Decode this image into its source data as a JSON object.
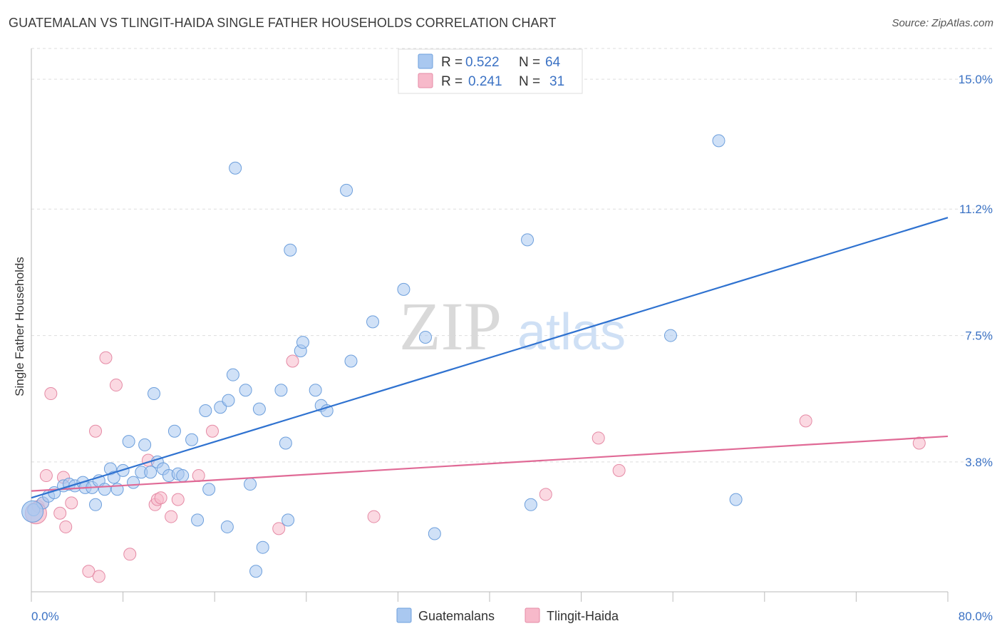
{
  "title": "GUATEMALAN VS TLINGIT-HAIDA SINGLE FATHER HOUSEHOLDS CORRELATION CHART",
  "source": "Source: ZipAtlas.com",
  "watermark": {
    "zip": "ZIP",
    "atlas": "atlas"
  },
  "colors": {
    "blue_fill": "#a9c8f0",
    "blue_stroke": "#6d9fdc",
    "blue_line": "#2f72d0",
    "pink_fill": "#f7b9ca",
    "pink_stroke": "#e58aa5",
    "pink_line": "#e06a96",
    "tick_label": "#3b72c4",
    "grid": "#dddddd"
  },
  "legend": {
    "rows": [
      {
        "r_label": "R =",
        "r_value": "0.522",
        "n_label": "N =",
        "n_value": "64"
      },
      {
        "r_label": "R =",
        "r_value": "0.241",
        "n_label": "N =",
        "n_value": "31"
      }
    ]
  },
  "bottom_legend": [
    "Guatemalans",
    "Tlingit-Haida"
  ],
  "chart_data": {
    "type": "scatter",
    "ylabel": "Single Father Households",
    "xlim": [
      0,
      80
    ],
    "ylim": [
      0,
      15.9
    ],
    "x_tick_labels": [
      "0.0%",
      "80.0%"
    ],
    "y_ticks": [
      3.8,
      7.5,
      11.2,
      15.0
    ],
    "y_tick_labels": [
      "3.8%",
      "7.5%",
      "11.2%",
      "15.0%"
    ],
    "grid": "horizontal-dashed",
    "legend_placement": "top-center",
    "series": [
      {
        "name": "Guatemalans",
        "r": 0.522,
        "n": 64,
        "trend": {
          "x": [
            0,
            80
          ],
          "y": [
            2.75,
            10.95
          ]
        },
        "points": [
          [
            0.2,
            2.4
          ],
          [
            1.0,
            2.6
          ],
          [
            1.5,
            2.8
          ],
          [
            2.0,
            2.9
          ],
          [
            2.8,
            3.1
          ],
          [
            3.3,
            3.15
          ],
          [
            3.8,
            3.1
          ],
          [
            4.5,
            3.2
          ],
          [
            4.7,
            3.05
          ],
          [
            5.6,
            2.55
          ],
          [
            5.3,
            3.05
          ],
          [
            5.9,
            3.25
          ],
          [
            6.4,
            3.0
          ],
          [
            6.9,
            3.6
          ],
          [
            7.2,
            3.35
          ],
          [
            7.5,
            3.0
          ],
          [
            8.0,
            3.55
          ],
          [
            8.5,
            4.4
          ],
          [
            8.9,
            3.2
          ],
          [
            9.6,
            3.5
          ],
          [
            9.9,
            4.3
          ],
          [
            10.4,
            3.5
          ],
          [
            10.7,
            5.8
          ],
          [
            11.0,
            3.8
          ],
          [
            11.5,
            3.6
          ],
          [
            12.0,
            3.4
          ],
          [
            12.5,
            4.7
          ],
          [
            12.8,
            3.45
          ],
          [
            13.2,
            3.4
          ],
          [
            14.0,
            4.45
          ],
          [
            14.5,
            2.1
          ],
          [
            15.2,
            5.3
          ],
          [
            15.5,
            3.0
          ],
          [
            16.5,
            5.4
          ],
          [
            17.1,
            1.9
          ],
          [
            17.2,
            5.6
          ],
          [
            17.6,
            6.35
          ],
          [
            17.8,
            12.4
          ],
          [
            18.7,
            5.9
          ],
          [
            19.1,
            3.15
          ],
          [
            19.6,
            0.6
          ],
          [
            19.9,
            5.35
          ],
          [
            20.2,
            1.3
          ],
          [
            21.8,
            5.9
          ],
          [
            22.2,
            4.35
          ],
          [
            22.4,
            2.1
          ],
          [
            22.6,
            10.0
          ],
          [
            23.5,
            7.05
          ],
          [
            23.7,
            7.3
          ],
          [
            24.8,
            5.9
          ],
          [
            25.3,
            5.45
          ],
          [
            25.8,
            5.3
          ],
          [
            27.5,
            11.75
          ],
          [
            27.9,
            6.75
          ],
          [
            29.8,
            7.9
          ],
          [
            32.5,
            8.85
          ],
          [
            34.4,
            7.45
          ],
          [
            35.2,
            1.7
          ],
          [
            43.3,
            10.3
          ],
          [
            43.6,
            2.55
          ],
          [
            55.8,
            7.5
          ],
          [
            60.0,
            13.2
          ],
          [
            61.5,
            2.7
          ],
          [
            0.1,
            2.35
          ]
        ]
      },
      {
        "name": "Tlingit-Haida",
        "r": 0.241,
        "n": 31,
        "trend": {
          "x": [
            0,
            80
          ],
          "y": [
            2.95,
            4.55
          ]
        },
        "points": [
          [
            0.6,
            2.5
          ],
          [
            1.0,
            2.6
          ],
          [
            1.3,
            3.4
          ],
          [
            1.7,
            5.8
          ],
          [
            2.5,
            2.3
          ],
          [
            2.8,
            3.35
          ],
          [
            3.0,
            1.9
          ],
          [
            3.5,
            2.6
          ],
          [
            5.0,
            0.6
          ],
          [
            5.6,
            4.7
          ],
          [
            5.9,
            0.45
          ],
          [
            6.5,
            6.85
          ],
          [
            7.4,
            6.05
          ],
          [
            8.6,
            1.1
          ],
          [
            10.2,
            3.85
          ],
          [
            10.8,
            2.55
          ],
          [
            11.0,
            2.7
          ],
          [
            11.3,
            2.75
          ],
          [
            12.2,
            2.2
          ],
          [
            12.8,
            2.7
          ],
          [
            14.6,
            3.4
          ],
          [
            15.8,
            4.7
          ],
          [
            21.6,
            1.85
          ],
          [
            22.8,
            6.75
          ],
          [
            29.9,
            2.2
          ],
          [
            44.9,
            2.85
          ],
          [
            49.5,
            4.5
          ],
          [
            51.3,
            3.55
          ],
          [
            67.6,
            5.0
          ],
          [
            77.5,
            4.35
          ],
          [
            0.4,
            2.3
          ]
        ]
      }
    ]
  }
}
